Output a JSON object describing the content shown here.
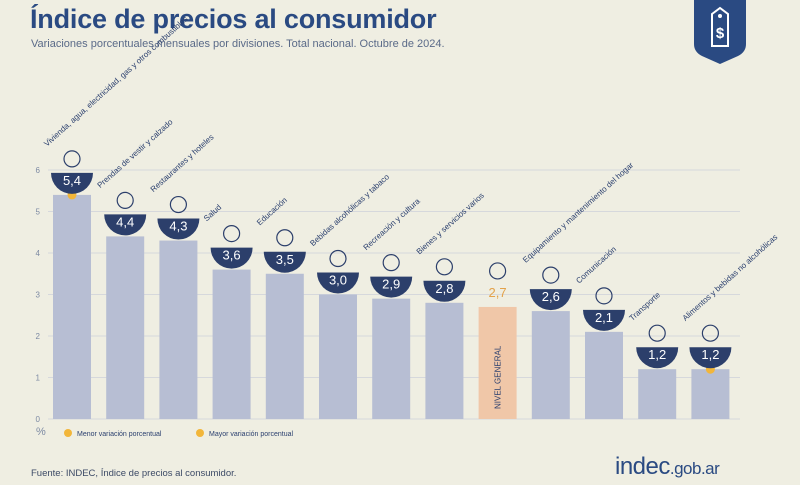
{
  "header": {
    "title": "Índice de precios al consumidor",
    "subtitle": "Variaciones porcentuales mensuales por divisiones. Total nacional. Octubre de 2024."
  },
  "footer": {
    "source": "Fuente: INDEC, Índice de precios al consumidor.",
    "brand_main": "indec",
    "brand_suffix": ".gob.ar"
  },
  "y_unit": "%",
  "colors": {
    "bar": "#b7bed3",
    "bar_highlight": "#f0c7a8",
    "badge": "#2a4a82",
    "value_bubble": "#2c3f6b",
    "marker": "#f2b63a"
  },
  "legend": {
    "min_label": "Menor variación porcentual",
    "max_label": "Mayor variación porcentual"
  },
  "chart_data": {
    "type": "bar",
    "categories": [
      "Vivienda, agua, electricidad, gas y otros combustibles",
      "Prendas de vestir y calzado",
      "Restaurantes y hoteles",
      "Salud",
      "Educación",
      "Bebidas alcohólicas y tabaco",
      "Recreación y cultura",
      "Bienes y servicios varios",
      "NIVEL GENERAL",
      "Equipamiento y mantenimiento del hogar",
      "Comunicación",
      "Transporte",
      "Alimentos y bebidas no alcohólicas"
    ],
    "values": [
      5.4,
      4.4,
      4.3,
      3.6,
      3.5,
      3.0,
      2.9,
      2.8,
      2.7,
      2.6,
      2.1,
      1.2,
      1.2
    ],
    "value_labels": [
      "5,4",
      "4,4",
      "4,3",
      "3,6",
      "3,5",
      "3,0",
      "2,9",
      "2,8",
      "2,7",
      "2,6",
      "2,1",
      "1,2",
      "1,2"
    ],
    "highlight_index": 8,
    "max_index": 0,
    "min_index": 12,
    "ylim": [
      0,
      6
    ],
    "yticks": [
      "0",
      "1",
      "2",
      "3",
      "4",
      "5",
      "6"
    ],
    "grid": true,
    "legend_position": "bottom-left"
  }
}
